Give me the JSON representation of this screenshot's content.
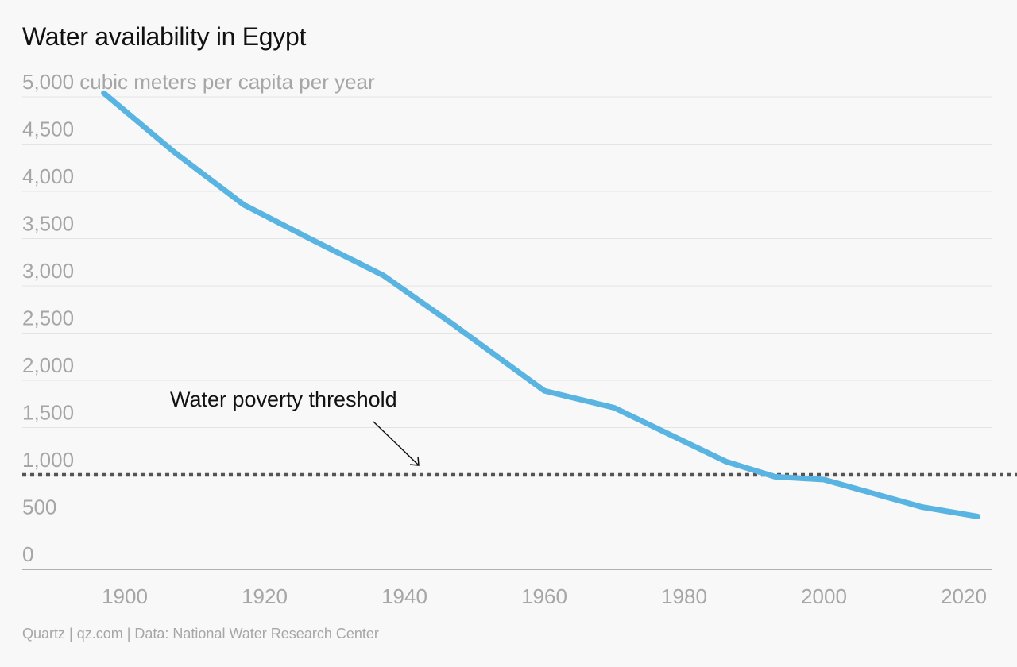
{
  "title": "Water availability in Egypt",
  "footer": "Quartz | qz.com | Data: National Water Research Center",
  "colors": {
    "line": "#5ab4e2",
    "threshold": "#555555",
    "grid": "#e3e3e3",
    "axis": "#999999",
    "tick_text": "#a6a6a6"
  },
  "chart_data": {
    "type": "line",
    "title": "Water availability in Egypt",
    "ylabel": "cubic meters per capita per year",
    "y_tick_labels": [
      "0",
      "500",
      "1,000",
      "1,500",
      "2,000",
      "2,500",
      "3,000",
      "3,500",
      "4,000",
      "4,500",
      "5,000 cubic meters per capita per year"
    ],
    "y_ticks": [
      0,
      500,
      1000,
      1500,
      2000,
      2500,
      3000,
      3500,
      4000,
      4500,
      5000
    ],
    "x_ticks": [
      1900,
      1920,
      1940,
      1960,
      1980,
      2000,
      2020
    ],
    "x_tick_labels": [
      "1900",
      "1920",
      "1940",
      "1960",
      "1980",
      "2000",
      "2020"
    ],
    "xlim": [
      1884,
      2024
    ],
    "ylim": [
      0,
      5000
    ],
    "grid": true,
    "series": [
      {
        "x": [
          1897,
          1907,
          1917,
          1927,
          1937,
          1947,
          1960,
          1970,
          1986,
          1993,
          2000,
          2014,
          2022
        ],
        "values": [
          5040,
          4420,
          3860,
          3480,
          3110,
          2590,
          1890,
          1710,
          1140,
          980,
          950,
          660,
          560
        ]
      }
    ],
    "threshold": {
      "value": 1000,
      "label": "Water poverty threshold"
    }
  }
}
